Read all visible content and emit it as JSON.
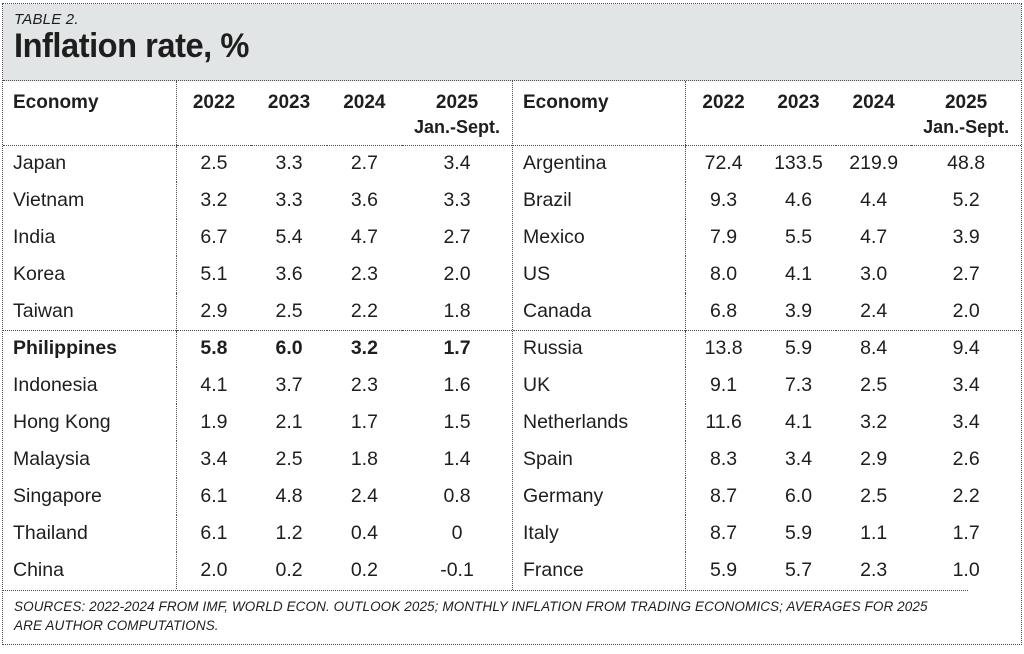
{
  "header": {
    "kicker": "TABLE 2.",
    "title": "Inflation rate, %"
  },
  "column_headers": {
    "economy": "Economy",
    "years": [
      "2022",
      "2023",
      "2024",
      "2025"
    ],
    "sub": "Jan.-Sept."
  },
  "footer": {
    "sources": "SOURCES: 2022-2024 FROM IMF, WORLD ECON. OUTLOOK 2025; MONTHLY INFLATION FROM TRADING ECONOMICS; AVERAGES FOR 2025 ARE AUTHOR COMPUTATIONS."
  },
  "colors": {
    "title_background": "#e2e5e5",
    "text": "#1e1e1e",
    "border": "#4c4c4c"
  },
  "chart_data": {
    "type": "table",
    "kicker": "TABLE 2.",
    "title": "Inflation rate, %",
    "columns": [
      "Economy",
      "2022",
      "2023",
      "2024",
      "2025 Jan.-Sept."
    ],
    "left": {
      "rows": [
        {
          "economy": "Japan",
          "values": [
            "2.5",
            "3.3",
            "2.7",
            "3.4"
          ],
          "bold": false,
          "group_start": false
        },
        {
          "economy": "Vietnam",
          "values": [
            "3.2",
            "3.3",
            "3.6",
            "3.3"
          ],
          "bold": false,
          "group_start": false
        },
        {
          "economy": "India",
          "values": [
            "6.7",
            "5.4",
            "4.7",
            "2.7"
          ],
          "bold": false,
          "group_start": false
        },
        {
          "economy": "Korea",
          "values": [
            "5.1",
            "3.6",
            "2.3",
            "2.0"
          ],
          "bold": false,
          "group_start": false
        },
        {
          "economy": "Taiwan",
          "values": [
            "2.9",
            "2.5",
            "2.2",
            "1.8"
          ],
          "bold": false,
          "group_start": false
        },
        {
          "economy": "Philippines",
          "values": [
            "5.8",
            "6.0",
            "3.2",
            "1.7"
          ],
          "bold": true,
          "group_start": true
        },
        {
          "economy": "Indonesia",
          "values": [
            "4.1",
            "3.7",
            "2.3",
            "1.6"
          ],
          "bold": false,
          "group_start": false
        },
        {
          "economy": "Hong Kong",
          "values": [
            "1.9",
            "2.1",
            "1.7",
            "1.5"
          ],
          "bold": false,
          "group_start": false
        },
        {
          "economy": "Malaysia",
          "values": [
            "3.4",
            "2.5",
            "1.8",
            "1.4"
          ],
          "bold": false,
          "group_start": false
        },
        {
          "economy": "Singapore",
          "values": [
            "6.1",
            "4.8",
            "2.4",
            "0.8"
          ],
          "bold": false,
          "group_start": false
        },
        {
          "economy": "Thailand",
          "values": [
            "6.1",
            "1.2",
            "0.4",
            "0"
          ],
          "bold": false,
          "group_start": false
        },
        {
          "economy": "China",
          "values": [
            "2.0",
            "0.2",
            "0.2",
            "-0.1"
          ],
          "bold": false,
          "group_start": false
        }
      ]
    },
    "right": {
      "rows": [
        {
          "economy": "Argentina",
          "values": [
            "72.4",
            "133.5",
            "219.9",
            "48.8"
          ],
          "bold": false,
          "group_start": false
        },
        {
          "economy": "Brazil",
          "values": [
            "9.3",
            "4.6",
            "4.4",
            "5.2"
          ],
          "bold": false,
          "group_start": false
        },
        {
          "economy": "Mexico",
          "values": [
            "7.9",
            "5.5",
            "4.7",
            "3.9"
          ],
          "bold": false,
          "group_start": false
        },
        {
          "economy": "US",
          "values": [
            "8.0",
            "4.1",
            "3.0",
            "2.7"
          ],
          "bold": false,
          "group_start": false
        },
        {
          "economy": "Canada",
          "values": [
            "6.8",
            "3.9",
            "2.4",
            "2.0"
          ],
          "bold": false,
          "group_start": false
        },
        {
          "economy": "Russia",
          "values": [
            "13.8",
            "5.9",
            "8.4",
            "9.4"
          ],
          "bold": false,
          "group_start": true
        },
        {
          "economy": "UK",
          "values": [
            "9.1",
            "7.3",
            "2.5",
            "3.4"
          ],
          "bold": false,
          "group_start": false
        },
        {
          "economy": "Netherlands",
          "values": [
            "11.6",
            "4.1",
            "3.2",
            "3.4"
          ],
          "bold": false,
          "group_start": false
        },
        {
          "economy": "Spain",
          "values": [
            "8.3",
            "3.4",
            "2.9",
            "2.6"
          ],
          "bold": false,
          "group_start": false
        },
        {
          "economy": "Germany",
          "values": [
            "8.7",
            "6.0",
            "2.5",
            "2.2"
          ],
          "bold": false,
          "group_start": false
        },
        {
          "economy": "Italy",
          "values": [
            "8.7",
            "5.9",
            "1.1",
            "1.7"
          ],
          "bold": false,
          "group_start": false
        },
        {
          "economy": "France",
          "values": [
            "5.9",
            "5.7",
            "2.3",
            "1.0"
          ],
          "bold": false,
          "group_start": false
        }
      ]
    }
  }
}
